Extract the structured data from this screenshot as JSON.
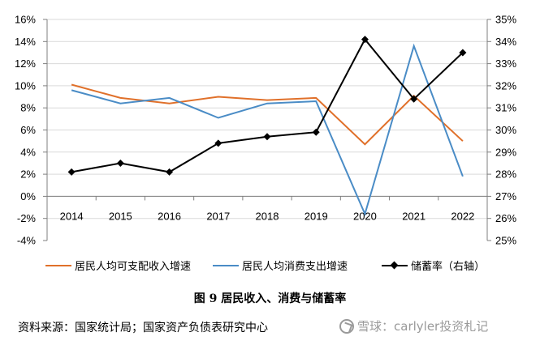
{
  "chart_data": {
    "type": "line",
    "categories": [
      "2014",
      "2015",
      "2016",
      "2017",
      "2018",
      "2019",
      "2020",
      "2021",
      "2022"
    ],
    "series": [
      {
        "name": "居民人均可支配收入增速",
        "axis": "left",
        "color": "#E0702A",
        "values": [
          10.1,
          8.9,
          8.4,
          9.0,
          8.7,
          8.9,
          4.7,
          9.1,
          5.0
        ]
      },
      {
        "name": "居民人均消费支出增速",
        "axis": "left",
        "color": "#4A8CC6",
        "values": [
          9.6,
          8.4,
          8.9,
          7.1,
          8.4,
          8.6,
          -1.6,
          13.6,
          1.8
        ]
      },
      {
        "name": "储蓄率（右轴）",
        "axis": "right",
        "color": "#000000",
        "marker": "diamond",
        "values": [
          28.1,
          28.5,
          28.1,
          29.4,
          29.7,
          29.9,
          34.1,
          31.4,
          33.5
        ]
      }
    ],
    "y_left": {
      "min": -4,
      "max": 16,
      "step": 2,
      "tick_labels": [
        "-4%",
        "-2%",
        "0%",
        "2%",
        "4%",
        "6%",
        "8%",
        "10%",
        "12%",
        "14%",
        "16%"
      ]
    },
    "y_right": {
      "min": 25,
      "max": 35,
      "step": 1,
      "tick_labels": [
        "25%",
        "26%",
        "27%",
        "28%",
        "29%",
        "30%",
        "31%",
        "32%",
        "33%",
        "34%",
        "35%"
      ]
    },
    "grid": true,
    "legend_position": "bottom"
  },
  "figure_title": "图 9  居民收入、消费与储蓄率",
  "source_text": "资料来源：国家统计局；国家资产负债表研究中心",
  "watermark_text": "雪球：carlyler投资札记"
}
